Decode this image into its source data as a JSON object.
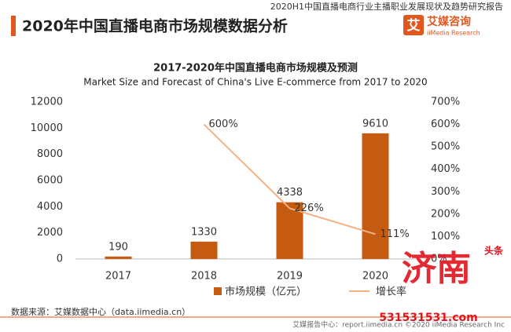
{
  "header": {
    "report": "2020H1中国直播电商行业主播职业发展现状及趋势研究报告",
    "title": "2020年中国直播电商市场规模数据分析"
  },
  "logo": {
    "icon": "艾",
    "name": "艾媒咨询",
    "sub": "iiMedia Research"
  },
  "chart_data": {
    "type": "bar",
    "title": "2017-2020年中国直播电商市场规模及预测",
    "subtitle": "Market Size and Forecast of China's Live E-commerce from 2017 to 2020",
    "categories": [
      "2017",
      "2018",
      "2019",
      "2020"
    ],
    "series": [
      {
        "name": "市场规模（亿元）",
        "type": "bar",
        "color": "#c55a11",
        "values": [
          190,
          1330,
          4338,
          9610
        ]
      },
      {
        "name": "增长率",
        "type": "line",
        "axis": "y2",
        "color": "#f4b183",
        "values": [
          null,
          600,
          226,
          111
        ],
        "value_labels": [
          null,
          "600%",
          "226%",
          "111%"
        ]
      }
    ],
    "ylim": [
      0,
      12000
    ],
    "yticks": [
      0,
      2000,
      4000,
      6000,
      8000,
      10000,
      12000
    ],
    "y2lim": [
      0,
      700
    ],
    "y2ticks": [
      {
        "value": 0,
        "label": "0%"
      },
      {
        "value": 100,
        "label": "100%"
      },
      {
        "value": 200,
        "label": "200%"
      },
      {
        "value": 300,
        "label": "300%"
      },
      {
        "value": 400,
        "label": "400%"
      },
      {
        "value": 500,
        "label": "500%"
      },
      {
        "value": 600,
        "label": "600%"
      },
      {
        "value": 700,
        "label": "700%"
      }
    ],
    "grid": false,
    "legend": "bottom"
  },
  "footer": {
    "source": "数据来源：艾媒数据中心（data.iimedia.cn）",
    "credit": "艾媒报告中心：report.iimedia.cn  ©2020  iiMedia Research Inc"
  },
  "watermark": {
    "text": "济南",
    "badge": "头条",
    "url": "531531531.com"
  }
}
